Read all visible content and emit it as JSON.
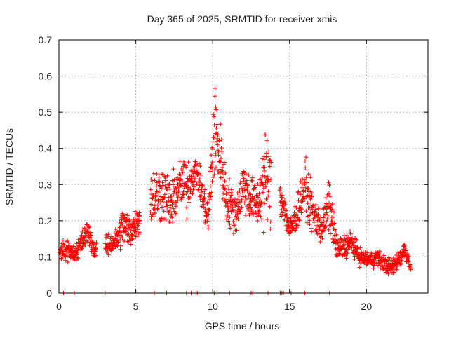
{
  "chart_data": {
    "type": "scatter",
    "title": "Day 365 of 2025, SRMTID for receiver xmis",
    "xlabel": "GPS time / hours",
    "ylabel": "SRMTID / TECUs",
    "xlim": [
      0,
      24
    ],
    "ylim": [
      0,
      0.7
    ],
    "xticks": [
      0,
      5,
      10,
      15,
      20
    ],
    "xtick_labels": [
      "0",
      "5",
      "10",
      "15",
      "20"
    ],
    "yticks": [
      0,
      0.1,
      0.2,
      0.3,
      0.4,
      0.5,
      0.6,
      0.7
    ],
    "ytick_labels": [
      "0",
      "0.1",
      "0.2",
      "0.3",
      "0.4",
      "0.5",
      "0.6",
      "0.7"
    ],
    "grid": true,
    "marker": "+",
    "color": "#ff0000",
    "trend": [
      [
        0.0,
        0.11,
        0.02
      ],
      [
        0.5,
        0.12,
        0.025
      ],
      [
        1.0,
        0.11,
        0.02
      ],
      [
        1.5,
        0.14,
        0.03
      ],
      [
        1.9,
        0.17,
        0.03
      ],
      [
        2.3,
        0.12,
        0.02
      ],
      [
        3.2,
        0.13,
        0.025
      ],
      [
        3.8,
        0.15,
        0.03
      ],
      [
        4.2,
        0.19,
        0.05
      ],
      [
        4.6,
        0.17,
        0.04
      ],
      [
        5.1,
        0.2,
        0.04
      ],
      [
        6.2,
        0.27,
        0.07
      ],
      [
        6.8,
        0.28,
        0.07
      ],
      [
        7.3,
        0.24,
        0.06
      ],
      [
        7.8,
        0.3,
        0.06
      ],
      [
        8.3,
        0.29,
        0.07
      ],
      [
        8.9,
        0.34,
        0.03
      ],
      [
        9.3,
        0.28,
        0.04
      ],
      [
        9.7,
        0.2,
        0.05
      ],
      [
        10.1,
        0.45,
        0.12
      ],
      [
        10.5,
        0.38,
        0.08
      ],
      [
        10.9,
        0.26,
        0.06
      ],
      [
        11.5,
        0.22,
        0.05
      ],
      [
        12.0,
        0.3,
        0.06
      ],
      [
        12.5,
        0.26,
        0.06
      ],
      [
        12.9,
        0.24,
        0.05
      ],
      [
        13.4,
        0.32,
        0.12
      ],
      [
        14.6,
        0.25,
        0.04
      ],
      [
        15.0,
        0.17,
        0.03
      ],
      [
        15.5,
        0.22,
        0.04
      ],
      [
        16.0,
        0.3,
        0.06
      ],
      [
        16.5,
        0.22,
        0.05
      ],
      [
        17.1,
        0.18,
        0.04
      ],
      [
        17.6,
        0.24,
        0.06
      ],
      [
        18.1,
        0.12,
        0.03
      ],
      [
        18.6,
        0.13,
        0.03
      ],
      [
        19.0,
        0.14,
        0.03
      ],
      [
        19.6,
        0.1,
        0.02
      ],
      [
        20.2,
        0.09,
        0.02
      ],
      [
        20.7,
        0.1,
        0.02
      ],
      [
        21.2,
        0.08,
        0.02
      ],
      [
        21.7,
        0.07,
        0.02
      ],
      [
        22.2,
        0.1,
        0.025
      ],
      [
        22.5,
        0.12,
        0.025
      ],
      [
        22.9,
        0.07,
        0.01
      ]
    ],
    "gaps": [
      [
        2.45,
        3.0
      ],
      [
        5.3,
        5.95
      ],
      [
        13.8,
        14.35
      ]
    ],
    "zero_points": [
      0.3,
      1.0,
      3.0,
      6.2,
      7.0,
      8.3,
      8.6,
      9.0,
      10.1,
      11.1,
      12.5,
      12.6,
      13.6,
      14.4,
      14.5,
      14.6,
      15.1,
      16.0,
      17.6
    ]
  }
}
